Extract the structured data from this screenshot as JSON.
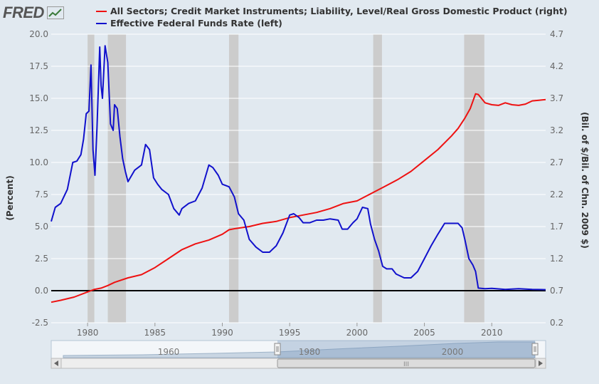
{
  "logo": {
    "text": "FRED",
    "icon": "trend-line-icon"
  },
  "chart_data": {
    "type": "line",
    "legend_position": "top",
    "grid": {
      "horizontal": true,
      "vertical": false
    },
    "colors": {
      "plot_background": "#e1e9f0",
      "gridline": "#ffffff",
      "recession": "#cccccc"
    },
    "x": {
      "range": [
        1977.3,
        2014.0
      ],
      "ticks": [
        1980,
        1985,
        1990,
        1995,
        2000,
        2005,
        2010
      ]
    },
    "y_left": {
      "label": "(Percent)",
      "range": [
        -2.5,
        20.0
      ],
      "ticks": [
        -2.5,
        0.0,
        2.5,
        5.0,
        7.5,
        10.0,
        12.5,
        15.0,
        17.5,
        20.0
      ]
    },
    "y_right": {
      "label": "(Bil. of $/Bil. of Chn. 2009 $)",
      "range": [
        0.2,
        4.7
      ],
      "ticks": [
        0.2,
        0.7,
        1.2,
        1.7,
        2.2,
        2.7,
        3.2,
        3.7,
        4.2,
        4.7
      ]
    },
    "recessions": [
      [
        1980.0,
        1980.5
      ],
      [
        1981.5,
        1982.85
      ],
      [
        1990.5,
        1991.2
      ],
      [
        2001.2,
        2001.85
      ],
      [
        2007.95,
        2009.45
      ]
    ],
    "series": [
      {
        "name": "All Sectors; Credit Market Instruments; Liability, Level/Real Gross Domestic Product (right)",
        "axis": "right",
        "color": "#ee1111",
        "x": [
          1977.3,
          1978.0,
          1979.0,
          1980.0,
          1980.5,
          1981.0,
          1981.5,
          1982.0,
          1983.0,
          1984.0,
          1985.0,
          1986.0,
          1987.0,
          1988.0,
          1989.0,
          1990.0,
          1990.5,
          1991.0,
          1992.0,
          1993.0,
          1994.0,
          1995.0,
          1996.0,
          1997.0,
          1998.0,
          1999.0,
          2000.0,
          2001.0,
          2002.0,
          2003.0,
          2004.0,
          2005.0,
          2006.0,
          2007.0,
          2007.5,
          2008.0,
          2008.4,
          2008.8,
          2009.0,
          2009.5,
          2010.0,
          2010.5,
          2011.0,
          2011.5,
          2012.0,
          2012.5,
          2013.0,
          2013.5,
          2014.0
        ],
        "values": [
          0.52,
          0.55,
          0.6,
          0.68,
          0.72,
          0.74,
          0.78,
          0.83,
          0.9,
          0.95,
          1.06,
          1.2,
          1.34,
          1.43,
          1.49,
          1.58,
          1.65,
          1.67,
          1.7,
          1.75,
          1.78,
          1.84,
          1.88,
          1.92,
          1.98,
          2.06,
          2.1,
          2.21,
          2.32,
          2.43,
          2.56,
          2.73,
          2.9,
          3.11,
          3.23,
          3.39,
          3.54,
          3.77,
          3.76,
          3.63,
          3.6,
          3.59,
          3.63,
          3.6,
          3.59,
          3.61,
          3.66,
          3.67,
          3.68
        ]
      },
      {
        "name": "Effective Federal Funds Rate (left)",
        "axis": "left",
        "color": "#1111cc",
        "x": [
          1977.3,
          1977.6,
          1978.0,
          1978.5,
          1978.9,
          1979.2,
          1979.5,
          1979.7,
          1979.9,
          1980.1,
          1980.25,
          1980.4,
          1980.55,
          1980.7,
          1980.9,
          1981.0,
          1981.1,
          1981.3,
          1981.5,
          1981.7,
          1981.9,
          1982.0,
          1982.2,
          1982.4,
          1982.6,
          1982.8,
          1983.0,
          1983.5,
          1984.0,
          1984.3,
          1984.6,
          1984.9,
          1985.2,
          1985.5,
          1986.0,
          1986.4,
          1986.8,
          1987.0,
          1987.5,
          1988.0,
          1988.5,
          1989.0,
          1989.3,
          1989.7,
          1990.0,
          1990.5,
          1990.9,
          1991.2,
          1991.6,
          1992.0,
          1992.5,
          1993.0,
          1993.5,
          1994.0,
          1994.5,
          1995.0,
          1995.3,
          1995.7,
          1996.0,
          1996.5,
          1997.0,
          1997.5,
          1998.0,
          1998.6,
          1998.9,
          1999.3,
          1999.7,
          2000.0,
          2000.4,
          2000.8,
          2001.0,
          2001.3,
          2001.6,
          2001.9,
          2002.2,
          2002.6,
          2002.9,
          2003.5,
          2004.0,
          2004.5,
          2005.0,
          2005.5,
          2006.0,
          2006.5,
          2007.0,
          2007.5,
          2007.8,
          2008.0,
          2008.3,
          2008.6,
          2008.8,
          2009.0,
          2009.5,
          2010.0,
          2011.0,
          2012.0,
          2013.0,
          2014.0
        ],
        "values": [
          5.4,
          6.5,
          6.8,
          7.9,
          10.0,
          10.1,
          10.6,
          11.8,
          13.8,
          14.0,
          17.6,
          11.0,
          9.0,
          12.8,
          19.0,
          16.0,
          15.0,
          19.1,
          17.8,
          13.0,
          12.5,
          14.5,
          14.2,
          12.0,
          10.3,
          9.3,
          8.5,
          9.4,
          9.8,
          11.4,
          11.0,
          8.8,
          8.3,
          7.9,
          7.5,
          6.4,
          5.9,
          6.4,
          6.8,
          7.0,
          8.0,
          9.8,
          9.6,
          9.0,
          8.3,
          8.1,
          7.3,
          6.0,
          5.5,
          4.0,
          3.4,
          3.0,
          3.0,
          3.5,
          4.5,
          5.9,
          6.0,
          5.7,
          5.3,
          5.3,
          5.5,
          5.5,
          5.6,
          5.5,
          4.8,
          4.8,
          5.3,
          5.6,
          6.5,
          6.4,
          5.2,
          4.0,
          3.1,
          1.9,
          1.7,
          1.7,
          1.3,
          1.0,
          1.0,
          1.5,
          2.5,
          3.5,
          4.4,
          5.25,
          5.25,
          5.25,
          4.9,
          4.0,
          2.5,
          2.0,
          1.5,
          0.2,
          0.15,
          0.18,
          0.1,
          0.15,
          0.1,
          0.08
        ]
      }
    ]
  },
  "navigator": {
    "labels": [
      "1960",
      "1980",
      "2000"
    ],
    "scrollbar_grip": "III"
  }
}
